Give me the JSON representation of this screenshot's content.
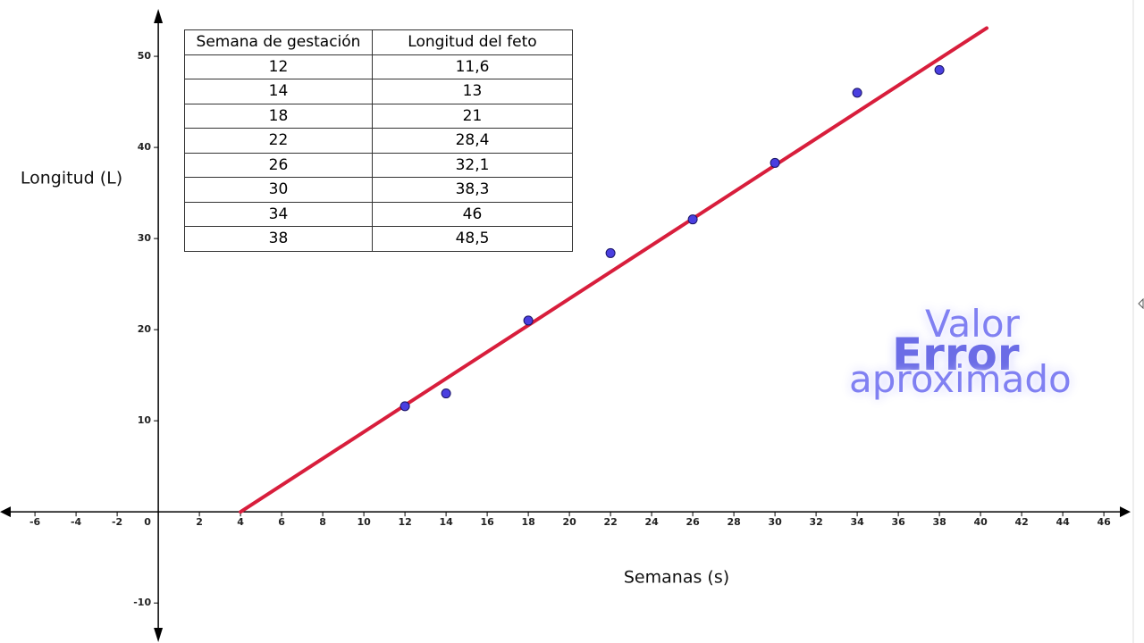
{
  "chart_data": {
    "type": "scatter",
    "x_label": "Semanas (s)",
    "y_label": "Longitud (L)",
    "xlim": [
      -7.7,
      47.3
    ],
    "ylim": [
      -13.9,
      55.2
    ],
    "xticks": [
      -6,
      -4,
      -2,
      0,
      2,
      4,
      6,
      8,
      10,
      12,
      14,
      16,
      18,
      20,
      22,
      24,
      26,
      28,
      30,
      32,
      34,
      36,
      38,
      40,
      42,
      44,
      46
    ],
    "yticks": [
      -10,
      10,
      20,
      30,
      40,
      50
    ],
    "grid": false,
    "points": {
      "x": [
        12,
        14,
        18,
        22,
        26,
        30,
        34,
        38
      ],
      "values": [
        11.6,
        13,
        21,
        28.4,
        32.1,
        38.3,
        46,
        48.5
      ],
      "color": "#4a3fe0"
    },
    "line": {
      "x": [
        4,
        40.3
      ],
      "values": [
        0,
        53.1
      ],
      "color": "#d81e3c"
    }
  },
  "table": {
    "headers": [
      "Semana de gestación",
      "Longitud del feto"
    ],
    "rows": [
      [
        "12",
        "11,6"
      ],
      [
        "14",
        "13"
      ],
      [
        "18",
        "21"
      ],
      [
        "22",
        "28,4"
      ],
      [
        "26",
        "32,1"
      ],
      [
        "30",
        "38,3"
      ],
      [
        "34",
        "46"
      ],
      [
        "38",
        "48,5"
      ]
    ]
  },
  "overlay": {
    "line1": "Valor",
    "line2": "Error",
    "line3": "aproximado"
  }
}
